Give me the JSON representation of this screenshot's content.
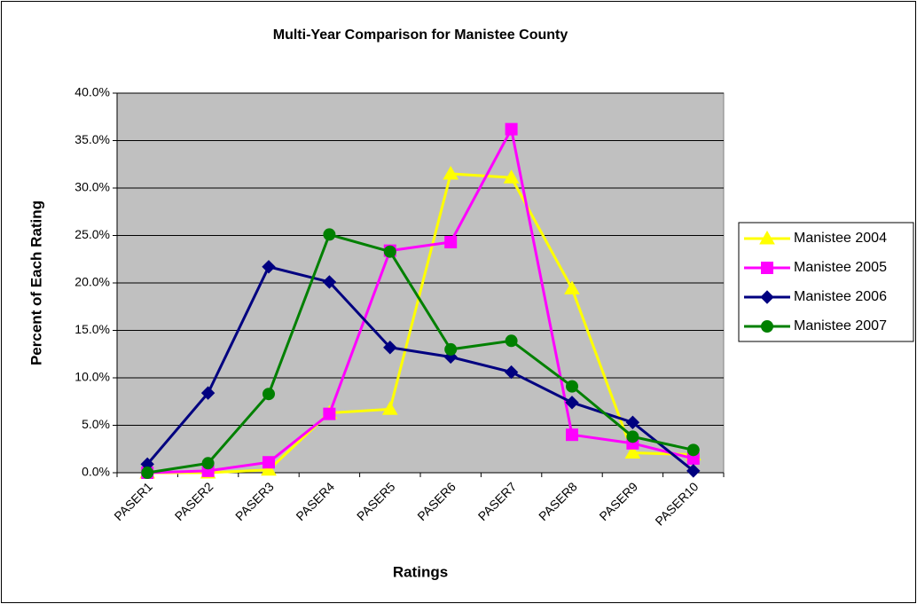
{
  "chart_data": {
    "type": "line",
    "title": "Multi-Year Comparison for Manistee County",
    "x_label": "Ratings",
    "y_label": "Percent of Each Rating",
    "categories": [
      "PASER1",
      "PASER2",
      "PASER3",
      "PASER4",
      "PASER5",
      "PASER6",
      "PASER7",
      "PASER8",
      "PASER9",
      "PASER10"
    ],
    "series": [
      {
        "name": "Manistee 2004",
        "color": "#ffff00",
        "marker": "triangle",
        "values": [
          0,
          0,
          0.3,
          6.3,
          6.7,
          31.5,
          31.1,
          19.4,
          2.1,
          1.9
        ]
      },
      {
        "name": "Manistee 2005",
        "color": "#ff00ff",
        "marker": "square",
        "values": [
          0,
          0.2,
          1.1,
          6.2,
          23.4,
          24.3,
          36.2,
          4.0,
          3.1,
          1.5
        ]
      },
      {
        "name": "Manistee 2006",
        "color": "#000080",
        "marker": "diamond",
        "values": [
          0.9,
          8.4,
          21.7,
          20.1,
          13.2,
          12.2,
          10.6,
          7.4,
          5.3,
          0.2
        ]
      },
      {
        "name": "Manistee 2007",
        "color": "#008000",
        "marker": "circle",
        "values": [
          0,
          1.0,
          8.3,
          25.1,
          23.3,
          13.0,
          13.9,
          9.1,
          3.8,
          2.4
        ]
      }
    ],
    "ylim": [
      0,
      40
    ],
    "yticks": [
      {
        "value": 0,
        "label": "0.0%"
      },
      {
        "value": 5,
        "label": "5.0%"
      },
      {
        "value": 10,
        "label": "10.0%"
      },
      {
        "value": 15,
        "label": "15.0%"
      },
      {
        "value": 20,
        "label": "20.0%"
      },
      {
        "value": 25,
        "label": "25.0%"
      },
      {
        "value": 30,
        "label": "30.0%"
      },
      {
        "value": 35,
        "label": "35.0%"
      },
      {
        "value": 40,
        "label": "40.0%"
      }
    ],
    "grid": true,
    "legend": "right"
  }
}
